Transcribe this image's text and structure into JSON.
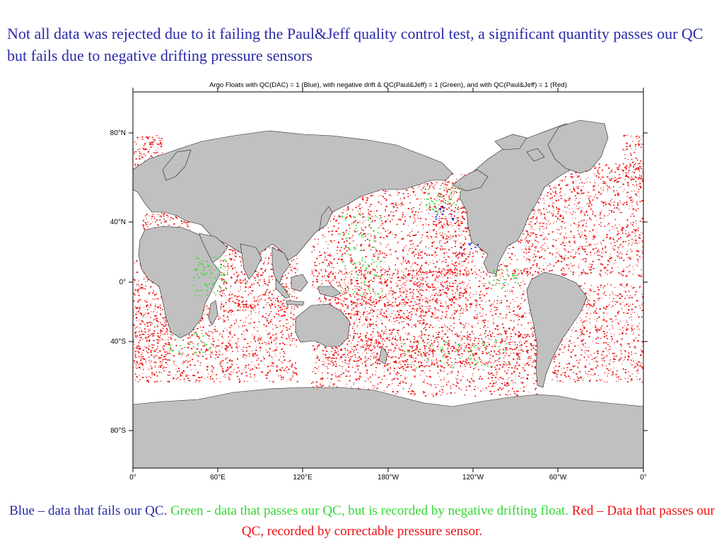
{
  "headline": "Not all data was rejected due to it failing the Paul&Jeff quality control test, a significant quantity passes our QC but fails due to negative drifting pressure sensors",
  "map": {
    "title": "Argo Floats with QC(DAC) = 1 (Blue), with negative drift & QC(Paul&Jeff) = 1 (Green), and with QC(Paul&Jeff) = 1 (Red)",
    "lat_labels": [
      "80°N",
      "40°N",
      "0°",
      "40°S",
      "80°S"
    ],
    "lon_labels": [
      "0°",
      "60°E",
      "120°E",
      "180°W",
      "120°W",
      "60°W",
      "0°"
    ],
    "colors": {
      "land": "#c0c0c0",
      "ocean": "#ffffff",
      "blue_points": "#2222cc",
      "green_points": "#33dd33",
      "red_points": "#ee1111"
    }
  },
  "caption": {
    "blue": "Blue – data that fails our QC.",
    "green": "Green - data that passes our QC, but is recorded by negative drifting float.",
    "red": "Red – Data that passes our QC, recorded by correctable pressure sensor."
  }
}
